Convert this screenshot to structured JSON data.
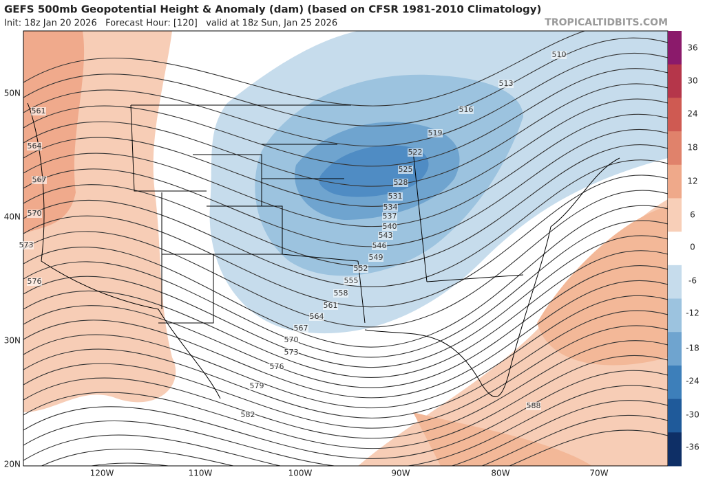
{
  "header": {
    "title": "GEFS 500mb Geopotential Height & Anomaly (dam) (based on CFSR 1981-2010 Climatology)",
    "subtitle": "Init: 18z Jan 20 2026   Forecast Hour: [120]   valid at 18z Sun, Jan 25 2026",
    "source": "TROPICALTIDBITS.COM"
  },
  "latitude_labels": [
    "50N",
    "40N",
    "30N",
    "20N"
  ],
  "longitude_labels": [
    "120W",
    "110W",
    "100W",
    "90W",
    "80W",
    "70W"
  ],
  "colorbar": {
    "labels": [
      36,
      30,
      24,
      18,
      12,
      6,
      0,
      -6,
      -12,
      -18,
      -24,
      -30,
      -36
    ]
  },
  "contour_labels": [
    510,
    513,
    516,
    519,
    522,
    525,
    528,
    531,
    534,
    537,
    540,
    543,
    546,
    549,
    552,
    555,
    558,
    561,
    564,
    567,
    570,
    573,
    576,
    579,
    582,
    588,
    561,
    564,
    567,
    570,
    573,
    576
  ]
}
